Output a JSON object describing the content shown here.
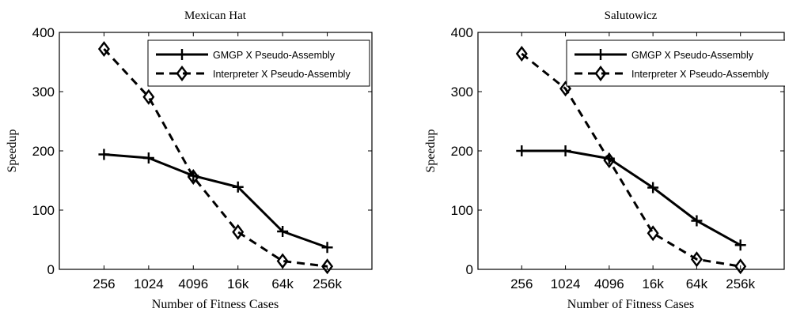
{
  "chart_data": [
    {
      "type": "line",
      "title": "Mexican Hat",
      "xlabel": "Number of Fitness Cases",
      "ylabel": "Speedup",
      "categories": [
        "256",
        "1024",
        "4096",
        "16k",
        "64k",
        "256k"
      ],
      "ylim": [
        0,
        400
      ],
      "yticks": [
        "0",
        "100",
        "200",
        "300",
        "400"
      ],
      "grid": false,
      "legend_position": "top-right",
      "series": [
        {
          "name": "GMGP X Pseudo-Assembly",
          "style": "solid",
          "marker": "plus",
          "values": [
            194,
            188,
            158,
            139,
            64,
            37
          ]
        },
        {
          "name": "Interpreter X Pseudo-Assembly",
          "style": "dashed",
          "marker": "diamond",
          "values": [
            372,
            291,
            156,
            63,
            14,
            5
          ]
        }
      ]
    },
    {
      "type": "line",
      "title": "Salutowicz",
      "xlabel": "Number of Fitness Cases",
      "ylabel": "Speedup",
      "categories": [
        "256",
        "1024",
        "4096",
        "16k",
        "64k",
        "256k"
      ],
      "ylim": [
        0,
        400
      ],
      "yticks": [
        "0",
        "100",
        "200",
        "300",
        "400"
      ],
      "grid": false,
      "legend_position": "top-right",
      "series": [
        {
          "name": "GMGP X Pseudo-Assembly",
          "style": "solid",
          "marker": "plus",
          "values": [
            200,
            200,
            187,
            138,
            82,
            41
          ]
        },
        {
          "name": "Interpreter X Pseudo-Assembly",
          "style": "dashed",
          "marker": "diamond",
          "values": [
            364,
            305,
            184,
            61,
            17,
            5
          ]
        }
      ]
    }
  ]
}
